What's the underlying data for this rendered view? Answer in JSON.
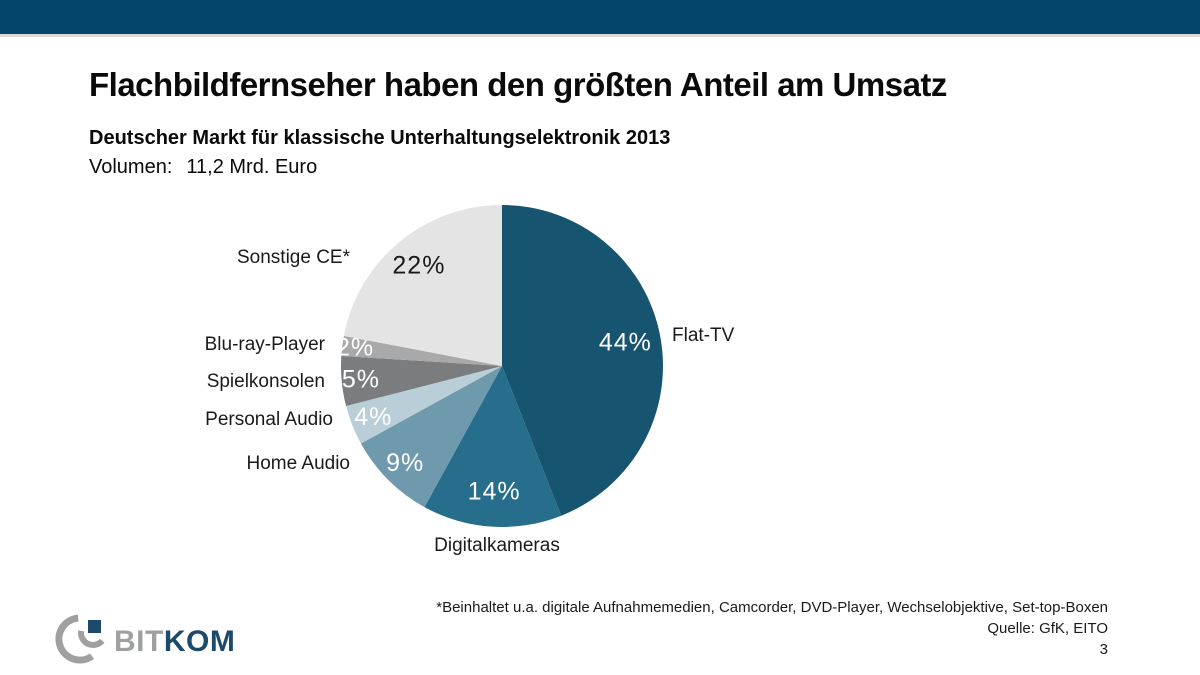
{
  "page": {
    "title": "Flachbildfernseher haben den größten Anteil am Umsatz",
    "subtitle": "Deutscher Markt für klassische Unterhaltungselektronik 2013",
    "volume_label": "Volumen:",
    "volume_value": "11,2 Mrd. Euro",
    "footnote": "*Beinhaltet u.a. digitale Aufnahmemedien, Camcorder, DVD-Player, Wechselobjektive, Set-top-Boxen",
    "source": "Quelle: GfK, EITO",
    "page_number": "3"
  },
  "logo": {
    "prefix": "BIT",
    "suffix": "KOM"
  },
  "colors": {
    "top_bar": "#04466B",
    "logo_gray": "#9EA0A2",
    "logo_navy": "#1D4A6B"
  },
  "chart_data": {
    "type": "pie",
    "title": "Deutscher Markt für klassische Unterhaltungselektronik 2013",
    "total_volume": "11,2 Mrd. Euro",
    "unit": "percent",
    "start": "12 o'clock, clockwise",
    "legend_position": "labels around pie",
    "segments": [
      {
        "label": "Flat-TV",
        "value": 44,
        "pct_label": "44%",
        "color": "#17546F",
        "pct_color": "#FFFFFF"
      },
      {
        "label": "Digitalkameras",
        "value": 14,
        "pct_label": "14%",
        "color": "#266E8B",
        "pct_color": "#FFFFFF"
      },
      {
        "label": "Home Audio",
        "value": 9,
        "pct_label": "9%",
        "color": "#6F99AC",
        "pct_color": "#FFFFFF"
      },
      {
        "label": "Personal Audio",
        "value": 4,
        "pct_label": "4%",
        "color": "#BACED7",
        "pct_color": "#FFFFFF"
      },
      {
        "label": "Spielkonsolen",
        "value": 5,
        "pct_label": "5%",
        "color": "#7B7C7E",
        "pct_color": "#FFFFFF"
      },
      {
        "label": "Blu-ray-Player",
        "value": 2,
        "pct_label": "2%",
        "color": "#A9A9AA",
        "pct_color": "#FFFFFF"
      },
      {
        "label": "Sonstige CE*",
        "value": 22,
        "pct_label": "22%",
        "color": "#E4E4E5",
        "pct_color": "#1A1A1A"
      }
    ]
  }
}
